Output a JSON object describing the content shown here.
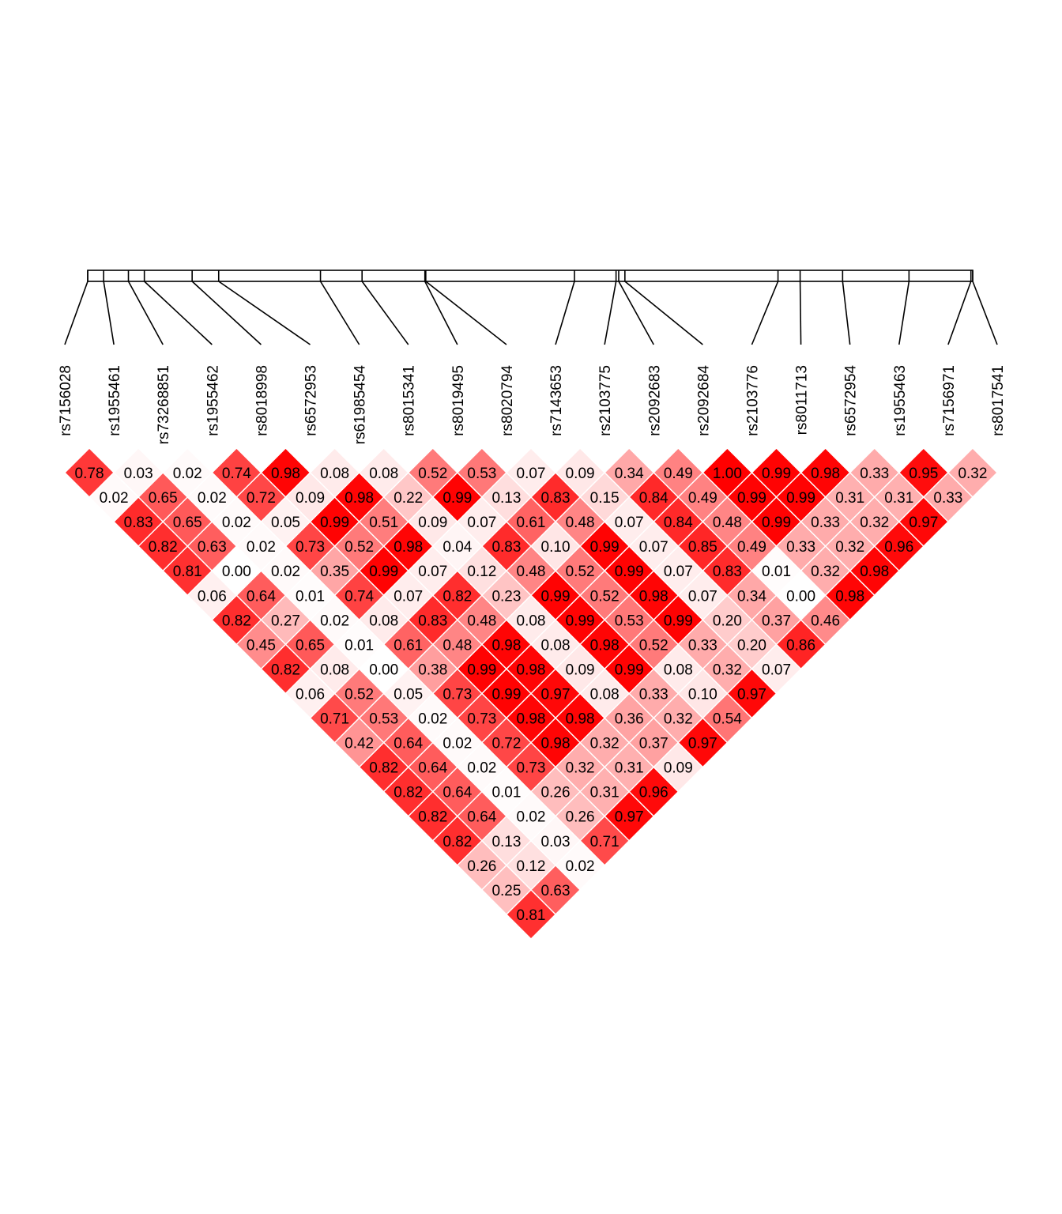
{
  "chart_data": {
    "type": "heatmap",
    "title": "",
    "description_of_layout": "LD triangle",
    "snps": [
      "rs7156028",
      "rs1955461",
      "rs73268851",
      "rs1955462",
      "rs8018998",
      "rs6572953",
      "rs61985454",
      "rs8015341",
      "rs8019495",
      "rs8020794",
      "rs7143653",
      "rs2103775",
      "rs2092683",
      "rs2092684",
      "rs2103776",
      "rs8011713",
      "rs6572954",
      "rs1955463",
      "rs7156971",
      "rs8017541"
    ],
    "map_ticks": [
      0.0,
      0.018,
      0.046,
      0.064,
      0.118,
      0.148,
      0.263,
      0.31,
      0.381,
      0.382,
      0.55,
      0.597,
      0.6,
      0.607,
      0.78,
      0.805,
      0.853,
      0.928,
      0.998,
      1.0
    ],
    "rows": [
      [
        0.78,
        0.03,
        0.02,
        0.74,
        0.98,
        0.08,
        0.08,
        0.52,
        0.53,
        0.07,
        0.09,
        0.34,
        0.49,
        1.0,
        0.99,
        0.98,
        0.33,
        0.95,
        0.32
      ],
      [
        0.02,
        0.65,
        0.02,
        0.72,
        0.09,
        0.98,
        0.22,
        0.99,
        0.13,
        0.83,
        0.15,
        0.84,
        0.49,
        0.99,
        0.99,
        0.31,
        0.31,
        0.33
      ],
      [
        0.83,
        0.65,
        0.02,
        0.05,
        0.99,
        0.51,
        0.09,
        0.07,
        0.61,
        0.48,
        0.07,
        0.84,
        0.48,
        0.99,
        0.33,
        0.32,
        0.97
      ],
      [
        0.82,
        0.63,
        0.02,
        0.73,
        0.52,
        0.98,
        0.04,
        0.83,
        0.1,
        0.99,
        0.07,
        0.85,
        0.49,
        0.33,
        0.32,
        0.96
      ],
      [
        0.81,
        0.0,
        0.02,
        0.35,
        0.99,
        0.07,
        0.12,
        0.48,
        0.52,
        0.99,
        0.07,
        0.83,
        0.01,
        0.32,
        0.98
      ],
      [
        0.06,
        0.64,
        0.01,
        0.74,
        0.07,
        0.82,
        0.23,
        0.99,
        0.52,
        0.98,
        0.07,
        0.34,
        0.0,
        0.98
      ],
      [
        0.82,
        0.27,
        0.02,
        0.08,
        0.83,
        0.48,
        0.08,
        0.99,
        0.53,
        0.99,
        0.2,
        0.37,
        0.46
      ],
      [
        0.45,
        0.65,
        0.01,
        0.61,
        0.48,
        0.98,
        0.08,
        0.98,
        0.52,
        0.33,
        0.2,
        0.86
      ],
      [
        0.82,
        0.08,
        0.0,
        0.38,
        0.99,
        0.98,
        0.09,
        0.99,
        0.08,
        0.32,
        0.07
      ],
      [
        0.06,
        0.52,
        0.05,
        0.73,
        0.99,
        0.97,
        0.08,
        0.33,
        0.1,
        0.97
      ],
      [
        0.71,
        0.53,
        0.02,
        0.73,
        0.98,
        0.98,
        0.36,
        0.32,
        0.54
      ],
      [
        0.42,
        0.64,
        0.02,
        0.72,
        0.98,
        0.32,
        0.37,
        0.97
      ],
      [
        0.82,
        0.64,
        0.02,
        0.73,
        0.32,
        0.31,
        0.09
      ],
      [
        0.82,
        0.64,
        0.01,
        0.26,
        0.31,
        0.96
      ],
      [
        0.82,
        0.64,
        0.02,
        0.26,
        0.97
      ],
      [
        0.82,
        0.13,
        0.03,
        0.71
      ],
      [
        0.26,
        0.12,
        0.02
      ],
      [
        0.25,
        0.63
      ],
      [
        0.81
      ]
    ],
    "color_low": "#ffffff",
    "color_high": "#ff0000",
    "border_color": "#ffffff",
    "text_color": "#000000",
    "line_color": "#000000"
  }
}
